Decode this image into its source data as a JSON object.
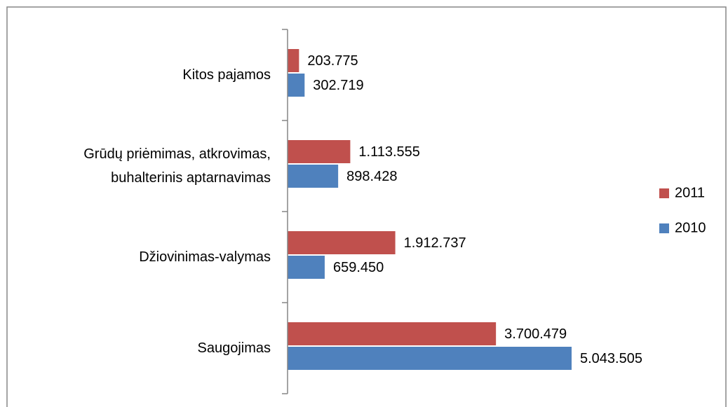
{
  "chart_data": {
    "type": "hbar",
    "categories": [
      "Kitos pajamos",
      "Grūdų priėmimas, atkrovimas,\nbuhalterinis aptarnavimas",
      "Džiovinimas-valymas",
      "Saugojimas"
    ],
    "series": [
      {
        "name": "2011",
        "color": "#c0504d",
        "values": [
          203775,
          1113555,
          1912737,
          3700479
        ],
        "value_labels": [
          "203.775",
          "1.113.555",
          "1.912.737",
          "3.700.479"
        ]
      },
      {
        "name": "2010",
        "color": "#4f81bd",
        "values": [
          302719,
          898428,
          659450,
          5043505
        ],
        "value_labels": [
          "302.719",
          "898.428",
          "659.450",
          "5.043.505"
        ]
      }
    ],
    "legend": "right"
  }
}
